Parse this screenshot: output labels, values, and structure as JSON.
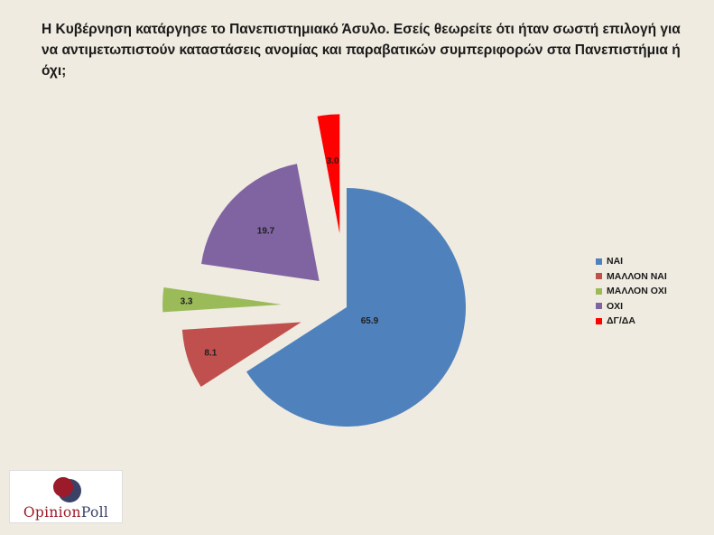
{
  "question": "Η Κυβέρνηση κατάργησε το Πανεπιστημιακό Άσυλο. Εσείς θεωρείτε ότι ήταν σωστή επιλογή για να αντιμετωπιστούν καταστάσεις ανομίας και παραβατικών συμπεριφορών στα Πανεπιστήμια ή όχι;",
  "chart_data": {
    "type": "pie",
    "title": "Η Κυβέρνηση κατάργησε το Πανεπιστημιακό Άσυλο. Εσείς θεωρείτε ότι ήταν σωστή επιλογή για να αντιμετωπιστούν καταστάσεις ανομίας και παραβατικών συμπεριφορών στα Πανεπιστήμια ή όχι;",
    "categories": [
      "ΝΑΙ",
      "ΜΑΛΛΟΝ ΝΑΙ",
      "ΜΑΛΛΟΝ ΟΧΙ",
      "ΟΧΙ",
      "ΔΓ/ΔΑ"
    ],
    "values": [
      65.9,
      8.1,
      3.3,
      19.7,
      3.0
    ],
    "value_labels": [
      "65.9",
      "8.1",
      "3.3",
      "19.7",
      "3.0"
    ],
    "colors": [
      "#4f81bd",
      "#c0504d",
      "#9bbb59",
      "#8064a2",
      "#ff0000"
    ],
    "exploded": true,
    "legend_position": "right"
  },
  "logo": {
    "text_part1": "Opinion",
    "text_part2": "Poll",
    "colors": [
      "#9b1b2a",
      "#3a4266"
    ]
  }
}
